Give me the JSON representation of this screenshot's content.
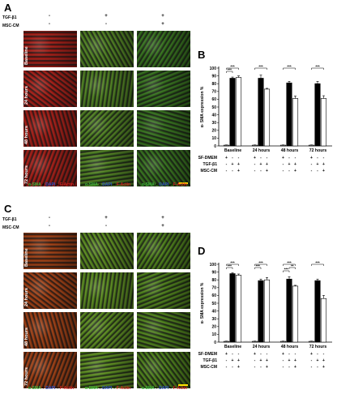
{
  "figures": [
    {
      "id": "top",
      "micro_letter": "A",
      "chart_letter": "B",
      "conditions": [
        {
          "label": "TGF-β1",
          "signs": [
            "-",
            "+",
            "+"
          ]
        },
        {
          "label": "MSC-CM",
          "signs": [
            "-",
            "-",
            "+"
          ]
        }
      ],
      "rows": [
        "Baseline",
        "24 hours",
        "48 hours",
        "72 hours"
      ],
      "stain_legend": {
        "sma": "α-SMA",
        "plus": "+",
        "dapi": "DAPI",
        "factin": "F-Actin"
      },
      "tint": "red"
    },
    {
      "id": "bottom",
      "micro_letter": "C",
      "chart_letter": "D",
      "conditions": [
        {
          "label": "TGF-β1",
          "signs": [
            "-",
            "+",
            "+"
          ]
        },
        {
          "label": "MSC-CM",
          "signs": [
            "-",
            "-",
            "+"
          ]
        }
      ],
      "rows": [
        "Baseline",
        "24 hours",
        "48 hours",
        "72 hours"
      ],
      "stain_legend": {
        "sma": "α-SMA",
        "plus": "+",
        "dapi": "DAPI",
        "factin": "F-Actin"
      },
      "tint": "orange"
    }
  ],
  "chart_data": [
    {
      "type": "bar",
      "panel": "B",
      "ylabel": "α- SMA expression %",
      "ylim": [
        0,
        100
      ],
      "yticks": [
        0,
        10,
        20,
        30,
        40,
        50,
        60,
        70,
        80,
        90,
        100
      ],
      "categories": [
        "Baseline",
        "24 hours",
        "48 hours",
        "72 hours"
      ],
      "series": [
        {
          "values": [
            1,
            1,
            1,
            1
          ],
          "errors": [
            0.3,
            0.3,
            0.3,
            0.3
          ],
          "fill": "#bbbbbb"
        },
        {
          "values": [
            87,
            87,
            81,
            80
          ],
          "errors": [
            1.5,
            4,
            2,
            3
          ],
          "fill": "#000000"
        },
        {
          "values": [
            88,
            73,
            61,
            61
          ],
          "errors": [
            2,
            1,
            3,
            3.5
          ],
          "fill": "#ffffff"
        }
      ],
      "significance": "***",
      "brackets": [
        {
          "group": 0,
          "from": 0,
          "to": 1,
          "level": 2
        },
        {
          "group": 0,
          "from": 0,
          "to": 2,
          "level": 3
        },
        {
          "group": 1,
          "from": 0,
          "to": 2,
          "level": 3
        },
        {
          "group": 2,
          "from": 0,
          "to": 2,
          "level": 3
        },
        {
          "group": 3,
          "from": 0,
          "to": 2,
          "level": 3
        }
      ],
      "bottom_rows": [
        {
          "label": "SF-DMEM",
          "signs": [
            "+",
            "-",
            "-"
          ]
        },
        {
          "label": "TGF-β1",
          "signs": [
            "-",
            "+",
            "+"
          ]
        },
        {
          "label": "MSC-CM",
          "signs": [
            "-",
            "-",
            "+"
          ]
        }
      ]
    },
    {
      "type": "bar",
      "panel": "D",
      "ylabel": "α- SMA expression %",
      "ylim": [
        0,
        100
      ],
      "yticks": [
        0,
        10,
        20,
        30,
        40,
        50,
        60,
        70,
        80,
        90,
        100
      ],
      "categories": [
        "Baseline",
        "24 hours",
        "48 hours",
        "72 hours"
      ],
      "series": [
        {
          "values": [
            1,
            1,
            1,
            1
          ],
          "errors": [
            0.3,
            0.3,
            0.3,
            0.3
          ],
          "fill": "#bbbbbb"
        },
        {
          "values": [
            88,
            79,
            81,
            79
          ],
          "errors": [
            1,
            2,
            3,
            2
          ],
          "fill": "#000000"
        },
        {
          "values": [
            86,
            80,
            72,
            56
          ],
          "errors": [
            1.5,
            3,
            1,
            4
          ],
          "fill": "#ffffff"
        }
      ],
      "significance": "***",
      "brackets": [
        {
          "group": 0,
          "from": 0,
          "to": 1,
          "level": 2
        },
        {
          "group": 0,
          "from": 0,
          "to": 2,
          "level": 3
        },
        {
          "group": 1,
          "from": 0,
          "to": 1,
          "level": 2
        },
        {
          "group": 1,
          "from": 0,
          "to": 2,
          "level": 3
        },
        {
          "group": 2,
          "from": 0,
          "to": 1,
          "level": 1
        },
        {
          "group": 2,
          "from": 0,
          "to": 2,
          "level": 3
        },
        {
          "group": 2,
          "from": 1,
          "to": 2,
          "level": 2,
          "label": "**"
        },
        {
          "group": 3,
          "from": 0,
          "to": 2,
          "level": 3
        }
      ],
      "bottom_rows": [
        {
          "label": "SF-DMEM",
          "signs": [
            "+",
            "-",
            "-"
          ]
        },
        {
          "label": "TGF-β1",
          "signs": [
            "-",
            "+",
            "+"
          ]
        },
        {
          "label": "MSC-CM",
          "signs": [
            "-",
            "-",
            "+"
          ]
        }
      ]
    }
  ]
}
